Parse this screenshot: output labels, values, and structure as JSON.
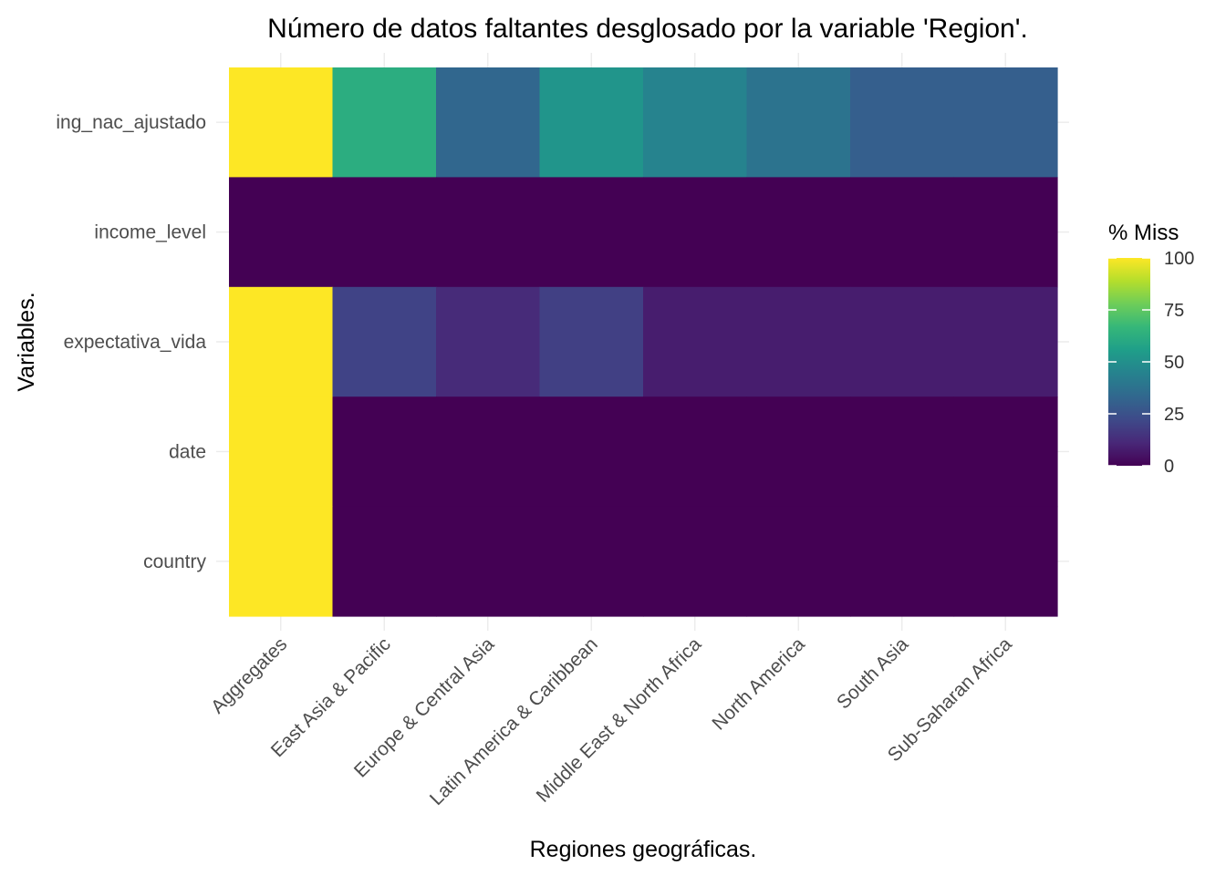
{
  "chart_data": {
    "type": "heatmap",
    "title": "Número de datos faltantes desglosado por la variable 'Region'.",
    "xlabel": "Regiones geográficas.",
    "ylabel": "Variables.",
    "x": [
      "Aggregates",
      "East Asia & Pacific",
      "Europe & Central Asia",
      "Latin America & Caribbean",
      "Middle East & North Africa",
      "North America",
      "South Asia",
      "Sub-Saharan Africa"
    ],
    "y": [
      "ing_nac_ajustado",
      "income_level",
      "expectativa_vida",
      "date",
      "country"
    ],
    "values": [
      [
        100,
        62,
        33,
        52,
        45,
        38,
        30,
        30
      ],
      [
        0,
        0,
        0,
        0,
        0,
        0,
        0,
        0
      ],
      [
        100,
        20,
        12,
        19,
        8,
        8,
        8,
        8
      ],
      [
        100,
        0,
        0,
        0,
        0,
        0,
        0,
        0
      ],
      [
        100,
        0,
        0,
        0,
        0,
        0,
        0,
        0
      ]
    ],
    "legend": {
      "title": "% Miss",
      "ticks": [
        "0",
        "25",
        "50",
        "75",
        "100"
      ],
      "min": 0,
      "max": 100,
      "placement": "right"
    },
    "colormap": "viridis"
  }
}
